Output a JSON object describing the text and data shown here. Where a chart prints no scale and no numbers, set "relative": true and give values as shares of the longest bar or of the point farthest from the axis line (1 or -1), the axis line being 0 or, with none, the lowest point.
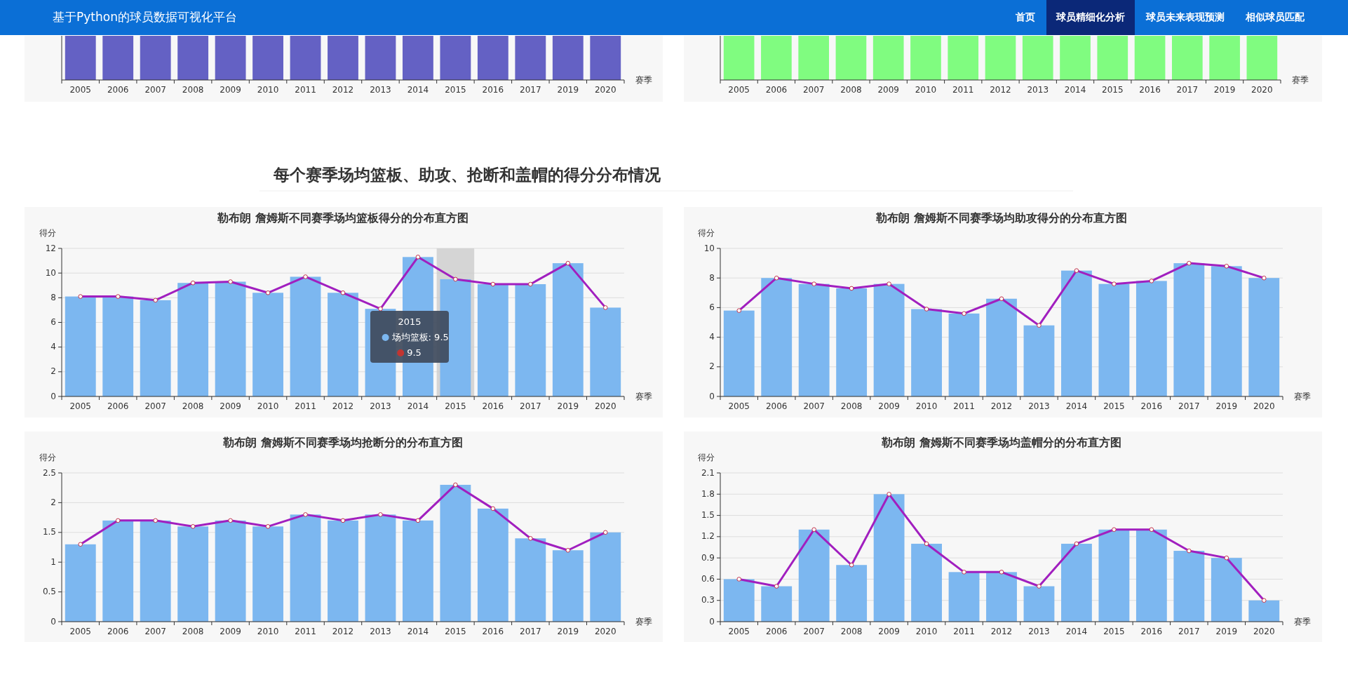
{
  "chart_data": [
    {
      "type": "bar",
      "relative": true,
      "xlabel": "赛季",
      "categories": [
        "2005",
        "2006",
        "2007",
        "2008",
        "2009",
        "2010",
        "2011",
        "2012",
        "2013",
        "2014",
        "2015",
        "2016",
        "2017",
        "2019",
        "2020"
      ],
      "series": [
        {
          "color": "#6461c4",
          "values": [
            1,
            1,
            1,
            1,
            1,
            1,
            1,
            1,
            1,
            1,
            1,
            1,
            1,
            1,
            1
          ]
        }
      ],
      "annotations": [
        "基于Python的球员数据可视化平台",
        "首页",
        "球员精细化分析",
        "球员未来表现预测",
        "相似球员匹配"
      ]
    },
    {
      "type": "bar",
      "relative": true,
      "xlabel": "赛季",
      "categories": [
        "2005",
        "2006",
        "2007",
        "2008",
        "2009",
        "2010",
        "2011",
        "2012",
        "2013",
        "2014",
        "2015",
        "2016",
        "2017",
        "2019",
        "2020"
      ],
      "series": [
        {
          "color": "#80fc80",
          "values": [
            1,
            1,
            1,
            1,
            1,
            1,
            1,
            1,
            1,
            1,
            1,
            1,
            1,
            1,
            1
          ]
        }
      ]
    },
    {
      "type": "bar",
      "title": "勒布朗 詹姆斯不同赛季场均篮板得分的分布直方图",
      "ylabel": "得分",
      "xlabel": "赛季",
      "categories": [
        "2005",
        "2006",
        "2007",
        "2008",
        "2009",
        "2010",
        "2011",
        "2012",
        "2013",
        "2014",
        "2015",
        "2016",
        "2017",
        "2019",
        "2020"
      ],
      "series": [
        {
          "color": "#7cb7f0",
          "values": [
            8.1,
            8.1,
            7.8,
            9.2,
            9.3,
            8.4,
            9.7,
            8.4,
            7.1,
            11.3,
            9.5,
            9.1,
            9.1,
            10.8,
            7.2
          ]
        },
        {
          "type": "line",
          "color": "#a11fbf",
          "marker": "circle",
          "values": [
            8.1,
            8.1,
            7.8,
            9.2,
            9.3,
            8.4,
            9.7,
            8.4,
            7.1,
            11.3,
            9.5,
            9.1,
            9.1,
            10.8,
            7.2
          ]
        }
      ],
      "ylim": [
        0,
        12
      ],
      "yticks": [
        0,
        2,
        4,
        6,
        8,
        10,
        12
      ],
      "grid": "y",
      "bands": [
        {
          "axis": "x",
          "from": "2015",
          "to": "2015",
          "color": "#cccccc"
        }
      ],
      "annotations": [
        "每个赛季场均篮板、助攻、抢断和盖帽的得分分布情况",
        "2015\n场均篮板: 9.5\n9.5"
      ]
    },
    {
      "type": "bar",
      "title": "勒布朗 詹姆斯不同赛季场均助攻得分的分布直方图",
      "ylabel": "得分",
      "xlabel": "赛季",
      "categories": [
        "2005",
        "2006",
        "2007",
        "2008",
        "2009",
        "2010",
        "2011",
        "2012",
        "2013",
        "2014",
        "2015",
        "2016",
        "2017",
        "2019",
        "2020"
      ],
      "series": [
        {
          "color": "#7cb7f0",
          "values": [
            5.8,
            8.0,
            7.6,
            7.3,
            7.6,
            5.9,
            5.6,
            6.6,
            4.8,
            8.5,
            7.6,
            7.8,
            9.0,
            8.8,
            8.0
          ]
        },
        {
          "type": "line",
          "color": "#a11fbf",
          "marker": "circle",
          "values": [
            5.8,
            8.0,
            7.6,
            7.3,
            7.6,
            5.9,
            5.6,
            6.6,
            4.8,
            8.5,
            7.6,
            7.8,
            9.0,
            8.8,
            8.0
          ]
        }
      ],
      "ylim": [
        0,
        10
      ],
      "yticks": [
        0,
        2,
        4,
        6,
        8,
        10
      ],
      "grid": "y"
    },
    {
      "type": "bar",
      "title": "勒布朗 詹姆斯不同赛季场均抢断分的分布直方图",
      "ylabel": "得分",
      "xlabel": "赛季",
      "categories": [
        "2005",
        "2006",
        "2007",
        "2008",
        "2009",
        "2010",
        "2011",
        "2012",
        "2013",
        "2014",
        "2015",
        "2016",
        "2017",
        "2019",
        "2020"
      ],
      "series": [
        {
          "color": "#7cb7f0",
          "values": [
            1.3,
            1.7,
            1.7,
            1.6,
            1.7,
            1.6,
            1.8,
            1.7,
            1.8,
            1.7,
            2.3,
            1.9,
            1.4,
            1.2,
            1.5
          ]
        },
        {
          "type": "line",
          "color": "#a11fbf",
          "marker": "circle",
          "values": [
            1.3,
            1.7,
            1.7,
            1.6,
            1.7,
            1.6,
            1.8,
            1.7,
            1.8,
            1.7,
            2.3,
            1.9,
            1.4,
            1.2,
            1.5
          ]
        }
      ],
      "ylim": [
        0,
        2.5
      ],
      "yticks": [
        0,
        0.5,
        1,
        1.5,
        2,
        2.5
      ],
      "grid": "y"
    },
    {
      "type": "bar",
      "title": "勒布朗 詹姆斯不同赛季场均盖帽分的分布直方图",
      "ylabel": "得分",
      "xlabel": "赛季",
      "categories": [
        "2005",
        "2006",
        "2007",
        "2008",
        "2009",
        "2010",
        "2011",
        "2012",
        "2013",
        "2014",
        "2015",
        "2016",
        "2017",
        "2019",
        "2020"
      ],
      "series": [
        {
          "color": "#7cb7f0",
          "values": [
            0.6,
            0.5,
            1.3,
            0.8,
            1.8,
            1.1,
            0.7,
            0.7,
            0.5,
            1.1,
            1.3,
            1.3,
            1.0,
            0.9,
            0.3
          ]
        },
        {
          "type": "line",
          "color": "#a11fbf",
          "marker": "circle",
          "values": [
            0.6,
            0.5,
            1.3,
            0.8,
            1.8,
            1.1,
            0.7,
            0.7,
            0.5,
            1.1,
            1.3,
            1.3,
            1.0,
            0.9,
            0.3
          ]
        }
      ],
      "ylim": [
        0,
        2.1
      ],
      "yticks": [
        0,
        0.3,
        0.6,
        0.9,
        1.2,
        1.5,
        1.8,
        2.1
      ],
      "grid": "y"
    }
  ]
}
